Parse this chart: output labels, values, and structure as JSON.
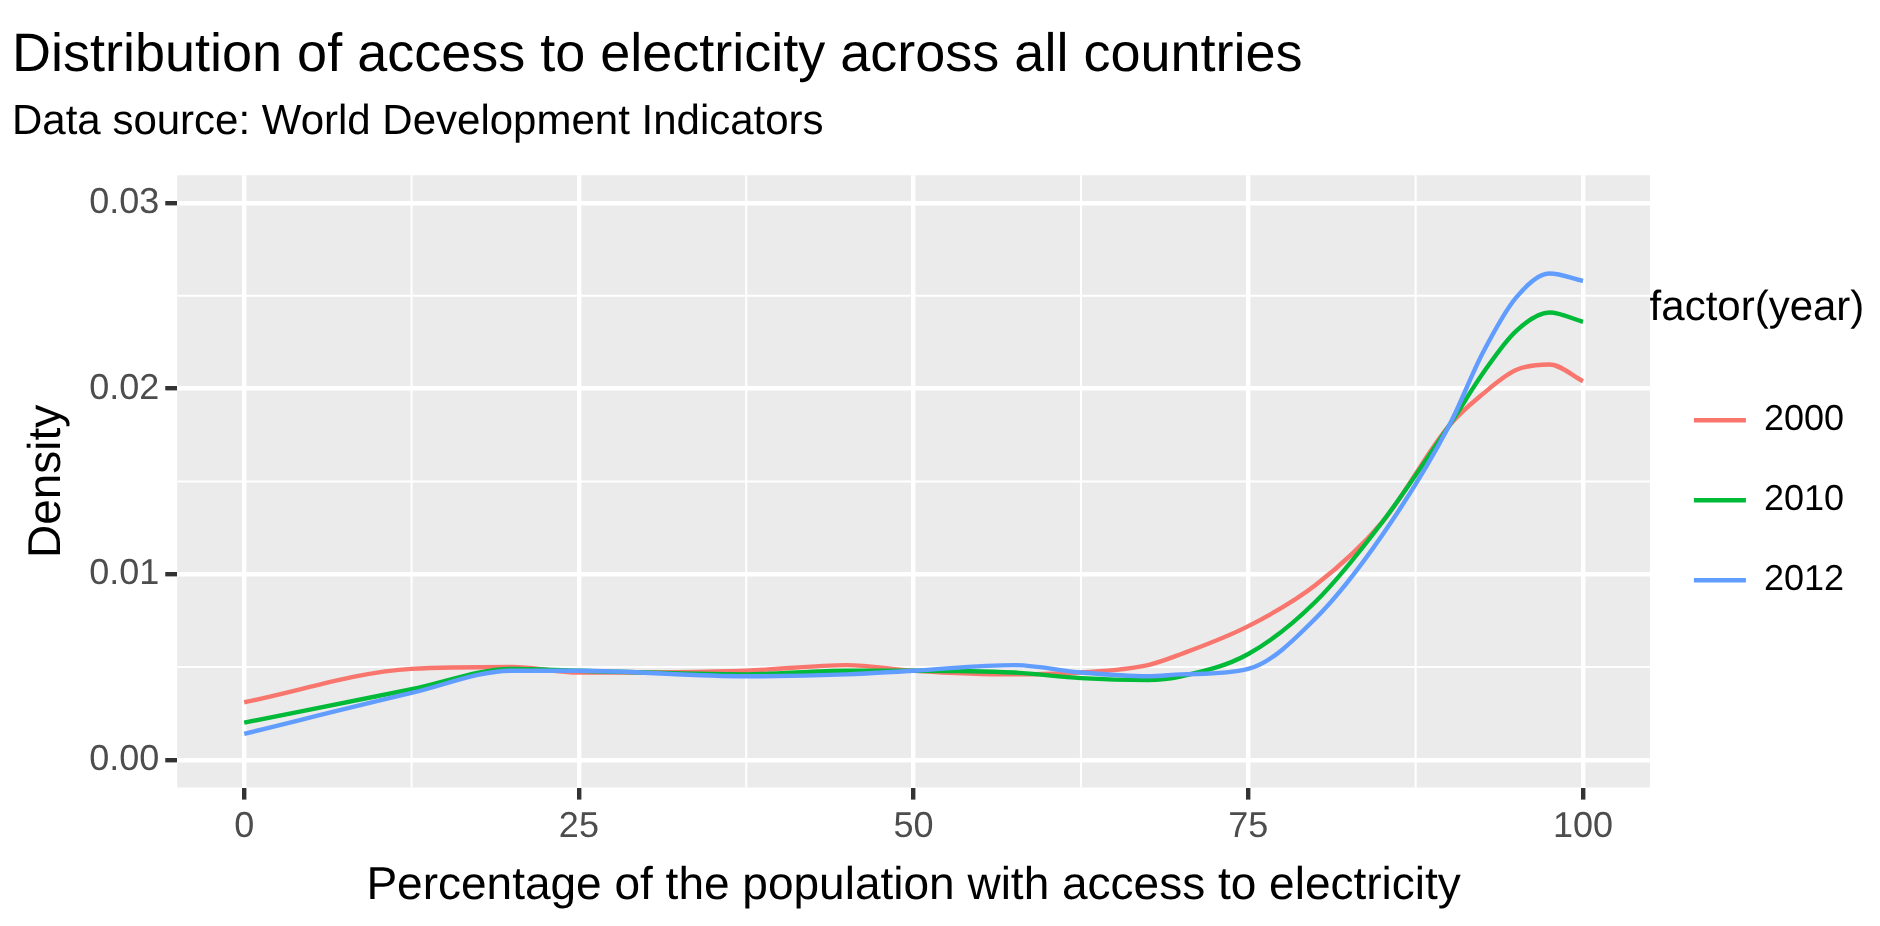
{
  "chart_data": {
    "type": "line",
    "title": "Distribution of access to electricity across all countries",
    "subtitle": "Data source: World Development Indicators",
    "xlabel": "Percentage of the population with access to electricity",
    "ylabel": "Density",
    "legend_title": "factor(year)",
    "legend": "right",
    "grid": true,
    "marker": "none",
    "line_style": "solid",
    "x": [
      0,
      12.5,
      20,
      25,
      37.5,
      45,
      50,
      57.5,
      62.5,
      67.5,
      70,
      75,
      80,
      85,
      90,
      92.5,
      95,
      97.5,
      100
    ],
    "xlim": [
      -5,
      105
    ],
    "xticks": [
      0,
      25,
      50,
      75,
      100
    ],
    "ylim": [
      -0.0015,
      0.0315
    ],
    "yticks": [
      {
        "value": 0,
        "label": "0.00"
      },
      {
        "value": 0.01,
        "label": "0.01"
      },
      {
        "value": 0.02,
        "label": "0.02"
      },
      {
        "value": 0.03,
        "label": "0.03"
      }
    ],
    "series": [
      {
        "name": "2000",
        "color": "#f8766d",
        "values": [
          0.0031,
          0.0049,
          0.005,
          0.0047,
          0.0048,
          0.0051,
          0.0048,
          0.0046,
          0.0047,
          0.0051,
          0.0057,
          0.0072,
          0.0094,
          0.0128,
          0.018,
          0.0197,
          0.021,
          0.0213,
          0.0204
        ]
      },
      {
        "name": "2010",
        "color": "#00ba38",
        "values": [
          0.002,
          0.0038,
          0.0049,
          0.0048,
          0.0046,
          0.0048,
          0.0048,
          0.0047,
          0.0044,
          0.0043,
          0.0045,
          0.0057,
          0.0085,
          0.0128,
          0.018,
          0.0208,
          0.0231,
          0.0241,
          0.0236
        ]
      },
      {
        "name": "2012",
        "color": "#619cff",
        "values": [
          0.0014,
          0.0036,
          0.0048,
          0.0048,
          0.0045,
          0.0046,
          0.0048,
          0.0051,
          0.0047,
          0.0045,
          0.0046,
          0.0049,
          0.0076,
          0.0121,
          0.018,
          0.0219,
          0.0249,
          0.0262,
          0.0258
        ]
      }
    ]
  }
}
